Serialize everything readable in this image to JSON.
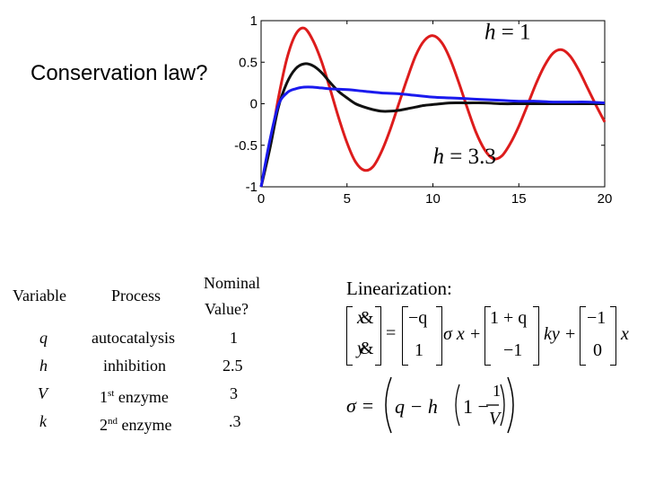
{
  "slide_question": "Conservation law?",
  "chart_data": {
    "type": "line",
    "title": "",
    "xlabel": "",
    "ylabel": "",
    "xlim": [
      0,
      20
    ],
    "ylim": [
      -1,
      1
    ],
    "x_ticks": [
      "0",
      "5",
      "10",
      "15",
      "20"
    ],
    "y_ticks": [
      "1",
      "0.5",
      "0",
      "-0.5",
      "-1"
    ],
    "grid": false,
    "series": [
      {
        "color": "#dd1c1c",
        "x": [
          0,
          0.5,
          1,
          1.5,
          2,
          2.5,
          3,
          3.5,
          4,
          4.5,
          5,
          5.5,
          6,
          6.5,
          7,
          7.5,
          8,
          8.5,
          9,
          9.5,
          10,
          10.5,
          11,
          11.5,
          12,
          12.5,
          13,
          13.5,
          14,
          14.5,
          15,
          15.5,
          16,
          16.5,
          17,
          17.5,
          18,
          18.5,
          19,
          19.5,
          20
        ],
        "values": [
          -1.0,
          -0.53,
          0.06,
          0.54,
          0.83,
          0.91,
          0.77,
          0.52,
          0.19,
          -0.16,
          -0.47,
          -0.7,
          -0.8,
          -0.76,
          -0.58,
          -0.32,
          -0.01,
          0.3,
          0.58,
          0.76,
          0.82,
          0.74,
          0.54,
          0.26,
          -0.05,
          -0.34,
          -0.55,
          -0.66,
          -0.63,
          -0.48,
          -0.27,
          -0.02,
          0.24,
          0.46,
          0.61,
          0.65,
          0.57,
          0.4,
          0.19,
          -0.02,
          -0.22
        ]
      },
      {
        "color": "#111111",
        "x": [
          0,
          0.5,
          1,
          1.5,
          2,
          2.5,
          3,
          3.5,
          4,
          4.5,
          5,
          5.5,
          6,
          6.5,
          7,
          7.5,
          8,
          8.5,
          9,
          9.5,
          10,
          11,
          12,
          13,
          14,
          15,
          16,
          17,
          18,
          19,
          20
        ],
        "values": [
          -1.0,
          -0.55,
          -0.05,
          0.25,
          0.42,
          0.48,
          0.46,
          0.38,
          0.26,
          0.15,
          0.07,
          0.0,
          -0.04,
          -0.07,
          -0.09,
          -0.09,
          -0.08,
          -0.06,
          -0.04,
          -0.02,
          -0.01,
          0.01,
          0.01,
          0.01,
          0.0,
          0.0,
          0.0,
          0.0,
          0.0,
          0.0,
          0.0
        ]
      },
      {
        "color": "#1a1aee",
        "x": [
          0,
          0.5,
          1,
          1.5,
          2,
          2.5,
          3,
          3.5,
          4,
          5,
          6,
          7,
          8,
          9,
          10,
          11,
          12,
          13,
          14,
          15,
          16,
          17,
          18,
          19,
          20
        ],
        "values": [
          -1.0,
          -0.45,
          -0.02,
          0.13,
          0.18,
          0.2,
          0.2,
          0.19,
          0.18,
          0.17,
          0.15,
          0.13,
          0.12,
          0.1,
          0.08,
          0.07,
          0.06,
          0.05,
          0.04,
          0.03,
          0.03,
          0.02,
          0.02,
          0.02,
          0.01
        ]
      }
    ],
    "annotations": [
      {
        "text_lhs": "h",
        "text_op": " = ",
        "text_rhs": "1",
        "at": [
          13,
          0.78
        ]
      },
      {
        "text_lhs": "h",
        "text_op": " = ",
        "text_rhs": "3.3",
        "at": [
          10,
          -0.72
        ]
      }
    ]
  },
  "table": {
    "headers": {
      "variable": "Variable",
      "process": "Process",
      "nominal_line1": "Nominal",
      "nominal_line2": "Value?"
    },
    "rows": [
      {
        "variable": "q",
        "process": "autocatalysis",
        "process_sup": "",
        "process_rest": "",
        "value": "1"
      },
      {
        "variable": "h",
        "process": "inhibition",
        "process_sup": "",
        "process_rest": "",
        "value": "2.5"
      },
      {
        "variable": "V",
        "process": "1",
        "process_sup": "st",
        "process_rest": " enzyme",
        "value": "3"
      },
      {
        "variable": "k",
        "process": "2",
        "process_sup": "nd",
        "process_rest": " enzyme",
        "value": ".3"
      }
    ]
  },
  "linearization": {
    "title": "Linearization:",
    "state_top": "x",
    "state_bottom": "y",
    "dot_glyph": "&",
    "equals": "=",
    "m1_top": "−q",
    "m1_bottom": "1",
    "sigma_x": "σ x +",
    "m2_top": "1 + q",
    "m2_bottom": "−1",
    "ky": "ky +",
    "m3_top": "−1",
    "m3_bottom": "0",
    "trailing_x": "x",
    "sigma_lhs": "σ =",
    "sigma_q": "q − h",
    "sigma_one": "1 −",
    "frac_num": "1",
    "frac_den": "V"
  }
}
